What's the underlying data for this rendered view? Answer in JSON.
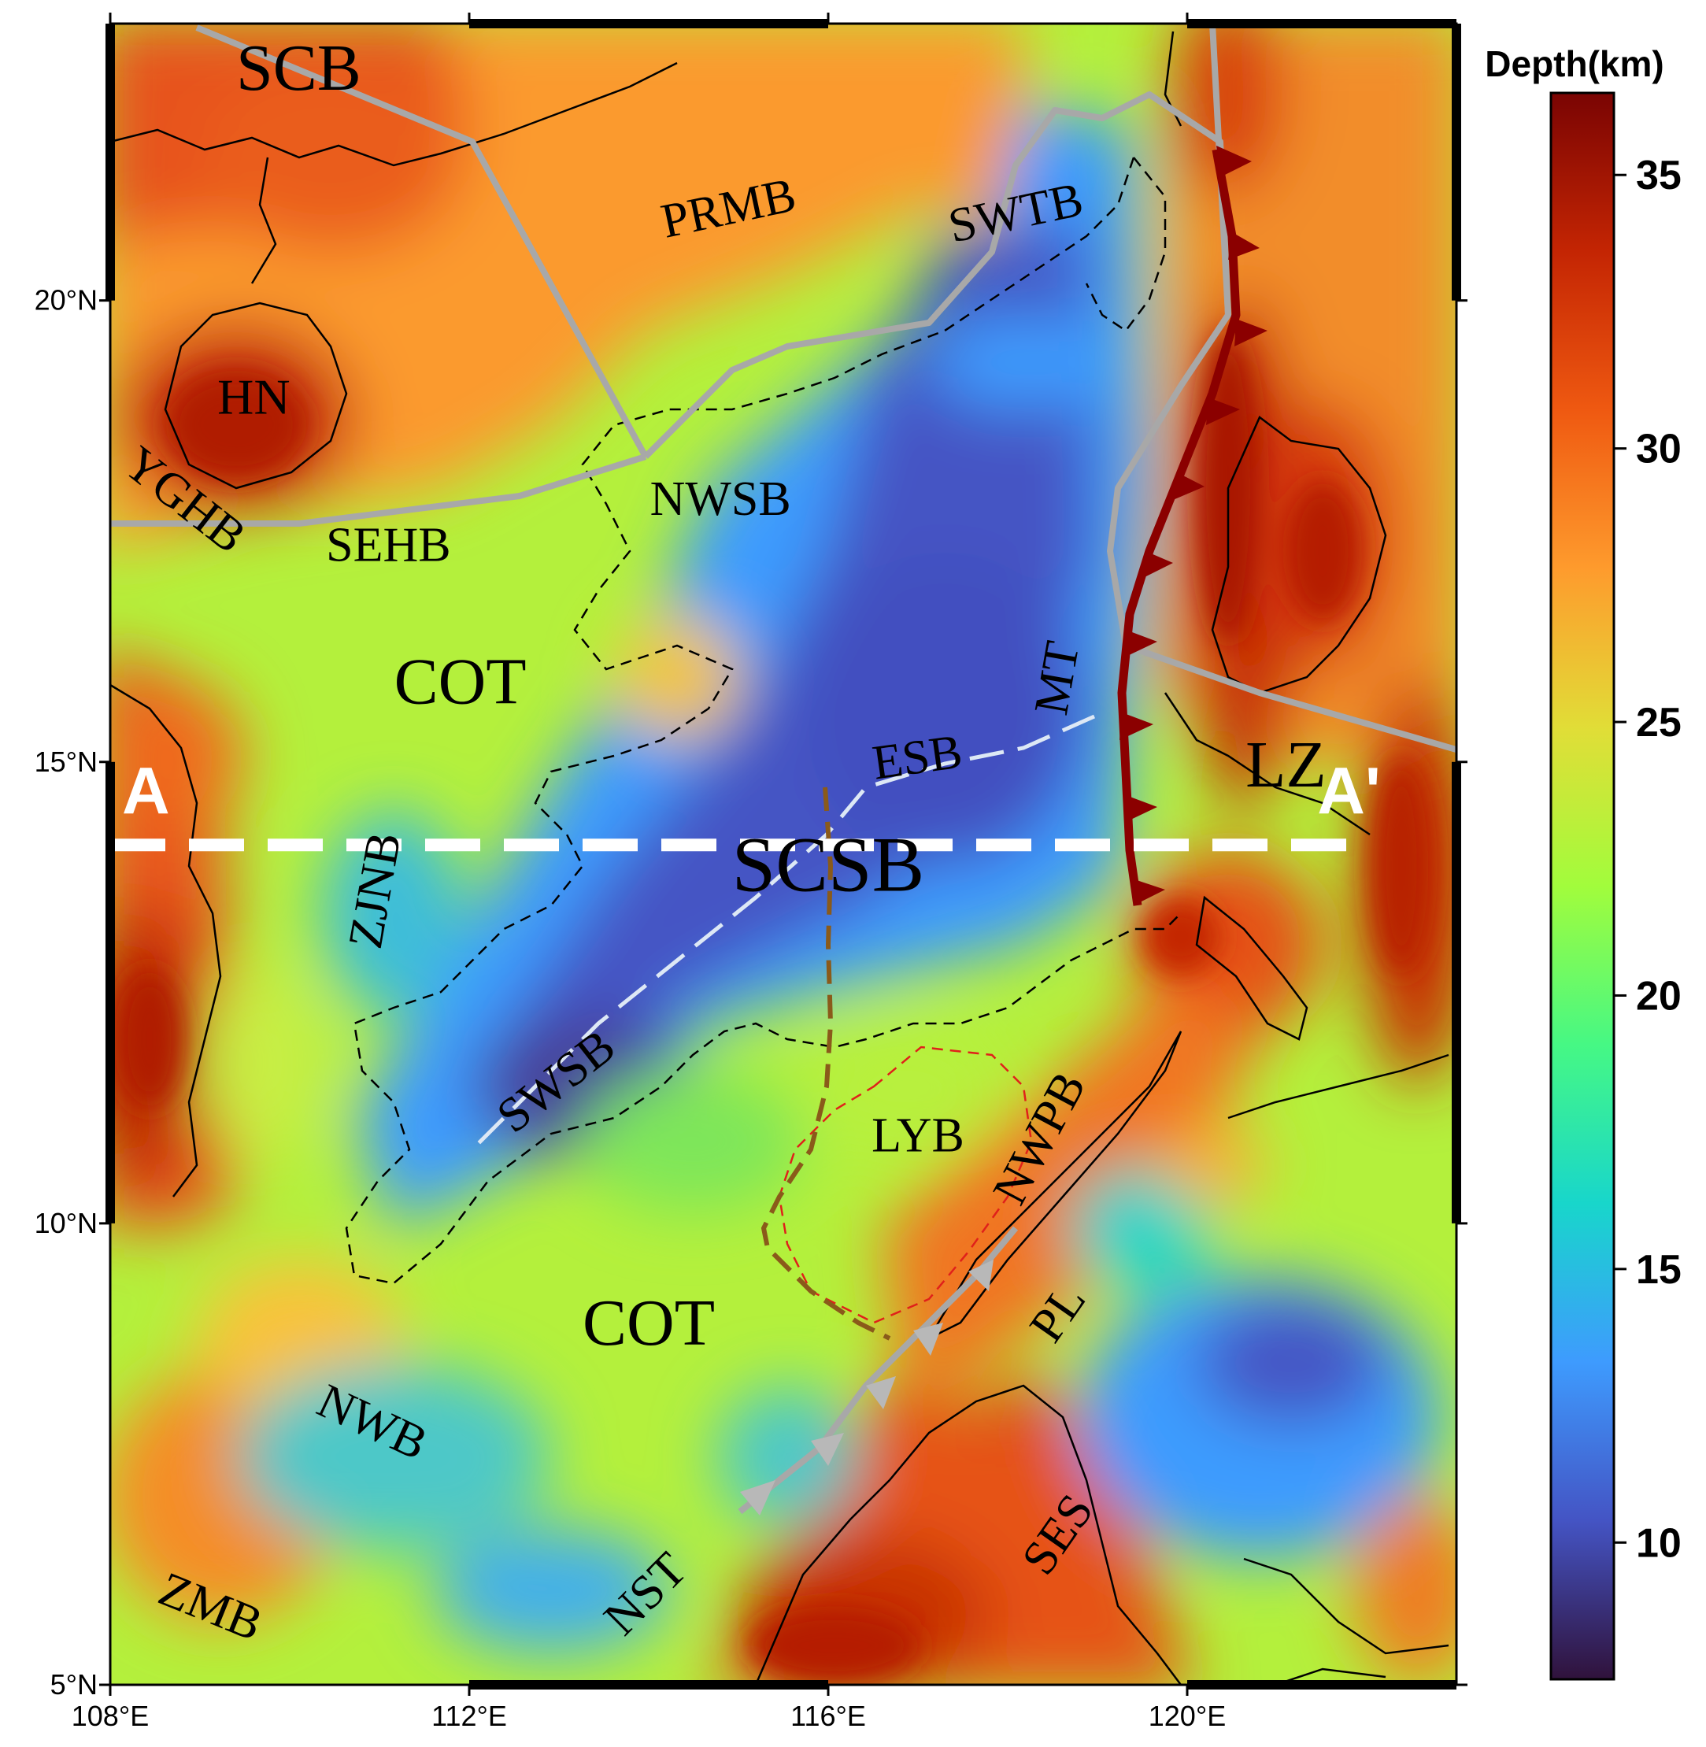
{
  "map": {
    "lon_range": [
      108,
      123
    ],
    "lat_range": [
      5,
      23
    ],
    "lon_ticks": [
      {
        "value": 108,
        "label": "108°E"
      },
      {
        "value": 112,
        "label": "112°E"
      },
      {
        "value": 116,
        "label": "116°E"
      },
      {
        "value": 120,
        "label": "120°E"
      }
    ],
    "lat_ticks": [
      {
        "value": 20,
        "label": "20°N"
      },
      {
        "value": 15,
        "label": "15°N"
      },
      {
        "value": 10,
        "label": "10°N"
      },
      {
        "value": 5,
        "label": "5°N"
      }
    ],
    "colorbar": {
      "title": "Depth(km)",
      "range": [
        7.5,
        36.5
      ],
      "ticks": [
        {
          "value": 35,
          "label": "35"
        },
        {
          "value": 30,
          "label": "30"
        },
        {
          "value": 25,
          "label": "25"
        },
        {
          "value": 20,
          "label": "20"
        },
        {
          "value": 15,
          "label": "15"
        },
        {
          "value": 10,
          "label": "10"
        }
      ],
      "colors": [
        "#30123b",
        "#4454c4",
        "#3e9bfe",
        "#18d6cb",
        "#46f884",
        "#a2fc3c",
        "#e1dd37",
        "#fe9b2d",
        "#ef5911",
        "#c42503",
        "#7a0403"
      ]
    },
    "profile": {
      "start_label": "A",
      "end_label": "A'",
      "lat": 14.1,
      "lon_start": 108,
      "lon_end": 121.8
    },
    "labels": [
      {
        "text": "SCB",
        "lon": 110.1,
        "lat": 22.45,
        "size": 84,
        "rotate": 0
      },
      {
        "text": "PRMB",
        "lon": 114.9,
        "lat": 20.95,
        "size": 62,
        "rotate": -12
      },
      {
        "text": "SWTB",
        "lon": 118.1,
        "lat": 20.9,
        "size": 62,
        "rotate": -12
      },
      {
        "text": "HN",
        "lon": 109.6,
        "lat": 18.9,
        "size": 64,
        "rotate": 0
      },
      {
        "text": "YGHB",
        "lon": 108.8,
        "lat": 17.8,
        "size": 62,
        "rotate": 38
      },
      {
        "text": "NWSB",
        "lon": 114.8,
        "lat": 17.8,
        "size": 62,
        "rotate": 0
      },
      {
        "text": "SEHB",
        "lon": 111.1,
        "lat": 17.3,
        "size": 62,
        "rotate": 0
      },
      {
        "text": "COT",
        "lon": 111.9,
        "lat": 15.8,
        "size": 84,
        "rotate": 0
      },
      {
        "text": "MT",
        "lon": 118.6,
        "lat": 15.9,
        "size": 62,
        "rotate": -80
      },
      {
        "text": "ESB",
        "lon": 117.0,
        "lat": 15.0,
        "size": 62,
        "rotate": -8
      },
      {
        "text": "LZ",
        "lon": 121.1,
        "lat": 14.9,
        "size": 84,
        "rotate": 0
      },
      {
        "text": "ZJNB",
        "lon": 111.0,
        "lat": 13.6,
        "size": 62,
        "rotate": -80
      },
      {
        "text": "SCSB",
        "lon": 116.0,
        "lat": 13.8,
        "size": 100,
        "rotate": 0
      },
      {
        "text": "SWSB",
        "lon": 113.0,
        "lat": 11.5,
        "size": 62,
        "rotate": -38
      },
      {
        "text": "LYB",
        "lon": 117.0,
        "lat": 10.9,
        "size": 62,
        "rotate": 0
      },
      {
        "text": "NWPB",
        "lon": 118.4,
        "lat": 10.9,
        "size": 62,
        "rotate": -62
      },
      {
        "text": "COT",
        "lon": 114.0,
        "lat": 8.85,
        "size": 84,
        "rotate": 0
      },
      {
        "text": "PL",
        "lon": 118.6,
        "lat": 9.0,
        "size": 62,
        "rotate": -55
      },
      {
        "text": "NWB",
        "lon": 110.9,
        "lat": 7.8,
        "size": 62,
        "rotate": 25
      },
      {
        "text": "SES",
        "lon": 118.6,
        "lat": 6.6,
        "size": 62,
        "rotate": -55
      },
      {
        "text": "NST",
        "lon": 114.0,
        "lat": 5.95,
        "size": 62,
        "rotate": -45
      },
      {
        "text": "ZMB",
        "lon": 109.1,
        "lat": 5.8,
        "size": 62,
        "rotate": 22
      }
    ]
  }
}
